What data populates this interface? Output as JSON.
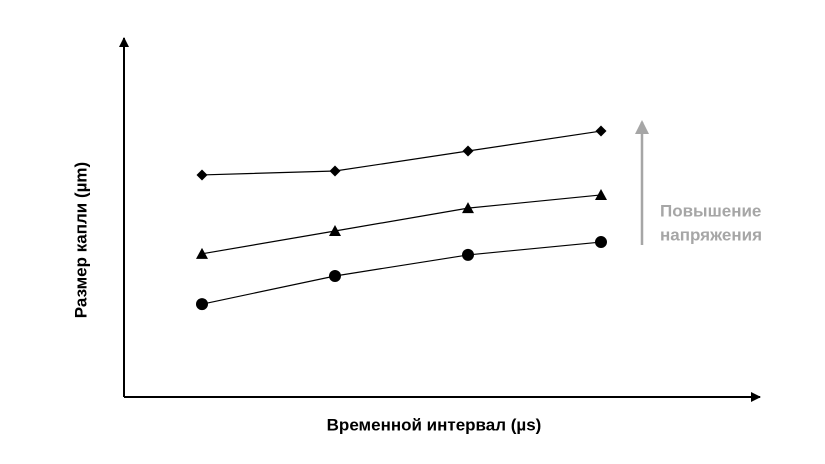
{
  "chart_data": {
    "type": "line",
    "x_label": "Временной интервал (µs)",
    "y_label": "Размер капли (µm)",
    "categories": [
      null,
      null,
      null,
      null
    ],
    "ylim": [
      0,
      100
    ],
    "series": [
      {
        "marker": "diamond",
        "color": "#000000",
        "values": [
          62.2,
          63.3,
          68.9,
          74.5
        ]
      },
      {
        "marker": "triangle",
        "color": "#000000",
        "values": [
          40.1,
          46.5,
          52.9,
          56.6
        ]
      },
      {
        "marker": "circle",
        "color": "#000000",
        "values": [
          26.0,
          33.9,
          39.8,
          43.4
        ]
      }
    ],
    "annotation": {
      "lines": [
        "Повышение",
        "напряжения"
      ],
      "color": "#a6a6a6"
    }
  }
}
